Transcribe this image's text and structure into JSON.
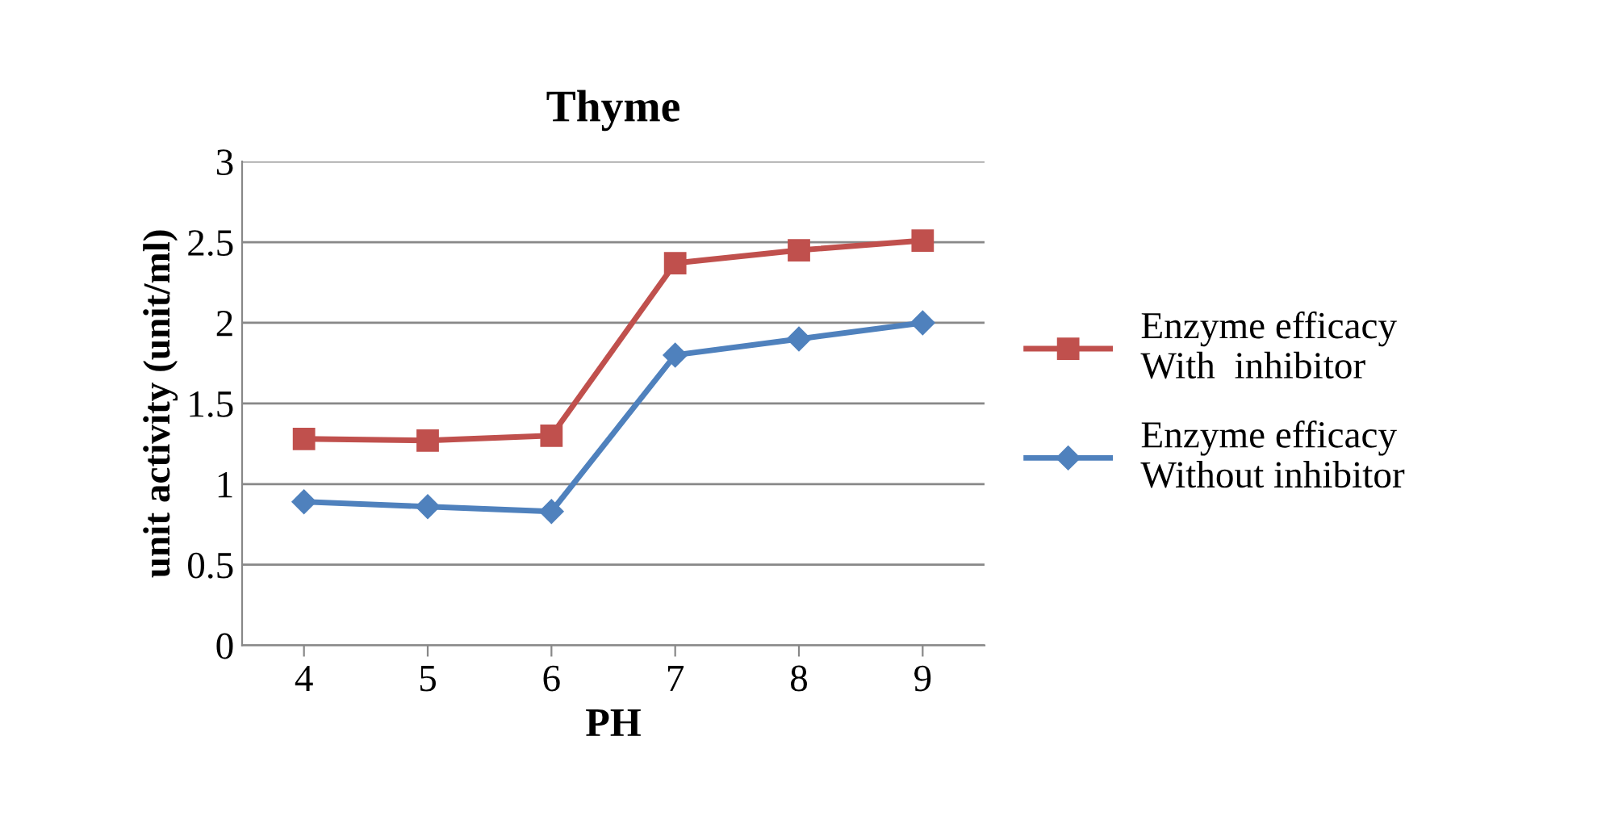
{
  "chart_data": {
    "type": "line",
    "title": "Thyme",
    "xlabel": "PH",
    "ylabel": "unit activity (unit/ml)",
    "categories": [
      "4",
      "5",
      "6",
      "7",
      "8",
      "9"
    ],
    "series": [
      {
        "name": "Enzyme efficacy\nWith  inhibitor",
        "color": "#c0504d",
        "marker": "square",
        "values": [
          1.28,
          1.27,
          1.3,
          2.37,
          2.45,
          2.51
        ]
      },
      {
        "name": "Enzyme efficacy\nWithout inhibitor",
        "color": "#4f81bd",
        "marker": "diamond",
        "values": [
          0.89,
          0.86,
          0.83,
          1.8,
          1.9,
          2.0
        ]
      }
    ],
    "ylim": [
      0,
      3
    ],
    "yticks": [
      0,
      0.5,
      1,
      1.5,
      2,
      2.5,
      3
    ],
    "grid": "y",
    "legend": "right",
    "line_style": "solid"
  }
}
